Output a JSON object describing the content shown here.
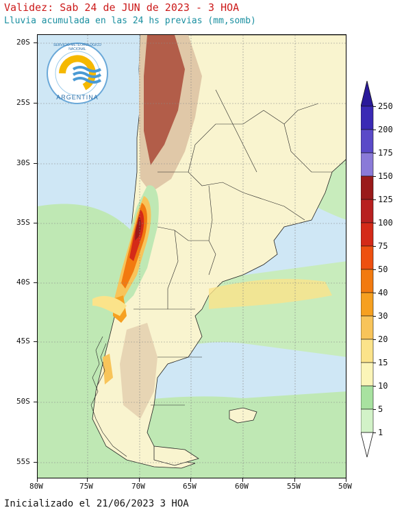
{
  "header": {
    "title": "Validez: Sab 24 de JUN de 2023 - 3 HOA",
    "subtitle": "Lluvia acumulada en las 24 hs previas (mm,somb)"
  },
  "footer": {
    "init_text": "Inicializado el 21/06/2023 3 HOA"
  },
  "logo": {
    "top_text": "SERVICIO METEOROLÓGICO NACIONAL",
    "bottom_text": "ARGENTINA"
  },
  "axes": {
    "lat_labels": [
      "20S",
      "25S",
      "30S",
      "35S",
      "40S",
      "45S",
      "50S",
      "55S"
    ],
    "lon_labels": [
      "80W",
      "75W",
      "70W",
      "65W",
      "60W",
      "55W",
      "50W"
    ]
  },
  "colorbar": {
    "labels": [
      "250",
      "200",
      "175",
      "150",
      "125",
      "100",
      "75",
      "50",
      "40",
      "30",
      "20",
      "15",
      "10",
      "5",
      "1"
    ],
    "colors": [
      "#2a1a9a",
      "#3a2ab5",
      "#5a4ac8",
      "#8a7ad8",
      "#9a1a1a",
      "#b82020",
      "#d42a18",
      "#ee5010",
      "#f27a10",
      "#f6a020",
      "#f8c45a",
      "#fbe38a",
      "#fbf5b8",
      "#a8e2a0",
      "#d2f2c8",
      "#ffffff"
    ]
  },
  "colors": {
    "ocean": "#cfe7f5",
    "land": "#f9f4cf",
    "rain_light": "#bfe8b4",
    "rain_low": "#d2f2c8",
    "terrain": "#e0c8a8",
    "terrain_high": "#a33a2a"
  }
}
